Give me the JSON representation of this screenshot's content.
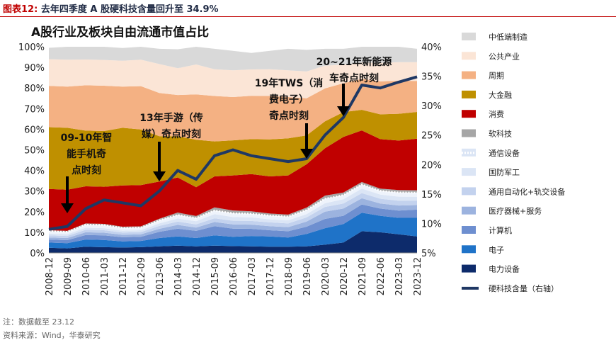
{
  "figure": {
    "label": "图表12:",
    "title_text": "去年四季度 A 股硬科技含量回升至 34.9%"
  },
  "notes": {
    "note": "注：数据截至 23.12",
    "source": "资料来源：Wind，华泰研究"
  },
  "chart_data": {
    "type": "area",
    "title": "A股行业及板块自由流通市值占比",
    "x_labels": [
      "2008-12",
      "2009-09",
      "2010-06",
      "2011-03",
      "2011-12",
      "2012-09",
      "2013-06",
      "2014-03",
      "2014-12",
      "2015-09",
      "2016-06",
      "2017-03",
      "2017-12",
      "2018-09",
      "2019-06",
      "2020-03",
      "2020-12",
      "2021-09",
      "2022-06",
      "2023-03",
      "2023-12"
    ],
    "left_axis": {
      "min": 0,
      "max": 100,
      "ticks": [
        "0%",
        "10%",
        "20%",
        "30%",
        "40%",
        "50%",
        "60%",
        "70%",
        "80%",
        "90%",
        "100%"
      ]
    },
    "right_axis": {
      "min": 5,
      "max": 40,
      "ticks": [
        "5%",
        "10%",
        "15%",
        "20%",
        "25%",
        "30%",
        "35%",
        "40%"
      ]
    },
    "stack_series": [
      {
        "name": "电力设备",
        "color": "#0d2b6b",
        "values": [
          2.5,
          2.2,
          3.0,
          2.8,
          2.6,
          2.8,
          3.2,
          3.5,
          3.2,
          3.5,
          3.3,
          3.2,
          3.0,
          3.0,
          3.2,
          4.0,
          5.0,
          10.5,
          10.0,
          9.0,
          8.0
        ]
      },
      {
        "name": "电子",
        "color": "#1f73c8",
        "values": [
          2.5,
          2.5,
          3.5,
          3.5,
          3.0,
          3.0,
          4.0,
          4.5,
          4.0,
          5.0,
          4.5,
          5.0,
          5.0,
          4.5,
          6.0,
          8.0,
          9.0,
          9.0,
          8.0,
          8.0,
          9.0
        ]
      },
      {
        "name": "计算机",
        "color": "#6e8fd0",
        "values": [
          1.5,
          1.5,
          2.2,
          2.2,
          2.0,
          2.0,
          3.0,
          3.8,
          3.5,
          4.5,
          4.0,
          3.5,
          3.0,
          3.0,
          3.5,
          4.5,
          4.0,
          4.0,
          3.5,
          3.5,
          4.0
        ]
      },
      {
        "name": "医疗器械+服务",
        "color": "#9cb3df",
        "values": [
          1.0,
          1.0,
          1.3,
          1.3,
          1.2,
          1.2,
          1.5,
          1.8,
          1.6,
          2.0,
          2.0,
          2.0,
          2.0,
          2.0,
          2.5,
          3.5,
          3.5,
          3.0,
          2.5,
          2.5,
          2.2
        ]
      },
      {
        "name": "通用自动化+轨交设备",
        "color": "#c3d2ee",
        "values": [
          1.0,
          1.0,
          1.2,
          1.2,
          1.1,
          1.1,
          1.4,
          1.6,
          1.5,
          1.8,
          1.8,
          1.8,
          1.8,
          1.8,
          2.0,
          2.3,
          2.5,
          2.5,
          2.3,
          2.3,
          2.2
        ]
      },
      {
        "name": "国防军工",
        "color": "#dbe5f5",
        "values": [
          0.8,
          0.8,
          1.0,
          1.0,
          0.9,
          0.9,
          1.2,
          1.5,
          1.6,
          2.0,
          1.8,
          1.7,
          1.5,
          1.5,
          1.6,
          1.8,
          2.0,
          2.2,
          2.0,
          2.0,
          1.8
        ]
      },
      {
        "name": "通信设备",
        "color": "#eef3fb",
        "values": [
          1.2,
          1.2,
          1.5,
          1.5,
          1.3,
          1.3,
          1.5,
          1.7,
          1.5,
          1.8,
          1.8,
          1.8,
          1.8,
          1.8,
          2.0,
          2.2,
          2.0,
          2.0,
          1.8,
          2.0,
          2.0
        ]
      },
      {
        "name": "软科技",
        "color": "#a6a6a6",
        "values": [
          0.5,
          0.5,
          0.6,
          0.6,
          0.6,
          0.6,
          0.8,
          1.2,
          1.0,
          1.5,
          1.4,
          1.2,
          1.0,
          1.0,
          1.2,
          1.5,
          1.3,
          1.2,
          1.1,
          1.2,
          1.2
        ]
      },
      {
        "name": "消费",
        "color": "#c00000",
        "values": [
          20.0,
          20.0,
          18.0,
          18.0,
          20.0,
          20.0,
          18.0,
          17.0,
          14.0,
          15.0,
          17.0,
          18.0,
          18.0,
          19.0,
          21.0,
          23.0,
          27.0,
          25.0,
          24.0,
          24.0,
          25.0
        ]
      },
      {
        "name": "大金融",
        "color": "#bf9000",
        "values": [
          30.0,
          30.0,
          27.0,
          27.0,
          28.0,
          27.0,
          22.0,
          20.0,
          23.0,
          17.0,
          17.0,
          17.0,
          18.0,
          18.0,
          14.0,
          13.0,
          12.0,
          10.0,
          12.0,
          13.0,
          13.0
        ]
      },
      {
        "name": "周期",
        "color": "#f4b183",
        "values": [
          20.0,
          20.0,
          22.0,
          22.0,
          20.0,
          21.0,
          21.0,
          20.0,
          22.0,
          22.0,
          21.0,
          21.0,
          21.0,
          20.0,
          18.0,
          16.0,
          14.0,
          15.0,
          16.0,
          16.0,
          15.0
        ]
      },
      {
        "name": "公共产业",
        "color": "#fbe5d6",
        "values": [
          13.0,
          13.0,
          12.5,
          12.5,
          12.5,
          12.8,
          14.0,
          13.0,
          14.5,
          13.0,
          13.0,
          12.8,
          13.0,
          13.0,
          13.0,
          11.0,
          9.0,
          8.0,
          9.0,
          9.0,
          9.1
        ]
      },
      {
        "name": "中低端制造",
        "color": "#d9d9d9",
        "values": [
          5.5,
          6.3,
          6.2,
          6.4,
          6.2,
          6.3,
          7.4,
          9.2,
          8.6,
          9.9,
          9.4,
          8.0,
          8.9,
          10.4,
          10.5,
          8.2,
          7.7,
          7.6,
          7.8,
          7.5,
          6.5
        ]
      }
    ],
    "line_series": {
      "name": "硬科技含量（右轴）",
      "color": "#1f3864",
      "axis": "right",
      "values": [
        9.0,
        9.5,
        12.5,
        14.0,
        13.5,
        13.0,
        15.5,
        19.0,
        17.5,
        21.5,
        22.5,
        21.5,
        21.0,
        20.5,
        21.0,
        25.0,
        28.0,
        33.5,
        33.0,
        34.0,
        34.9
      ]
    },
    "annotations": [
      {
        "lines": [
          "09-10年智",
          "能手机奇",
          "点时刻"
        ],
        "x_label": "2009-09"
      },
      {
        "lines": [
          "13年手游（传",
          "媒）奇点时刻"
        ],
        "x_label": "2013-06"
      },
      {
        "lines": [
          "19年TWS（消",
          "费电子）",
          "奇点时刻"
        ],
        "x_label": "2019-06"
      },
      {
        "lines": [
          "20~21年新能源",
          "车奇点时刻"
        ],
        "x_label": "2020-12"
      }
    ]
  }
}
